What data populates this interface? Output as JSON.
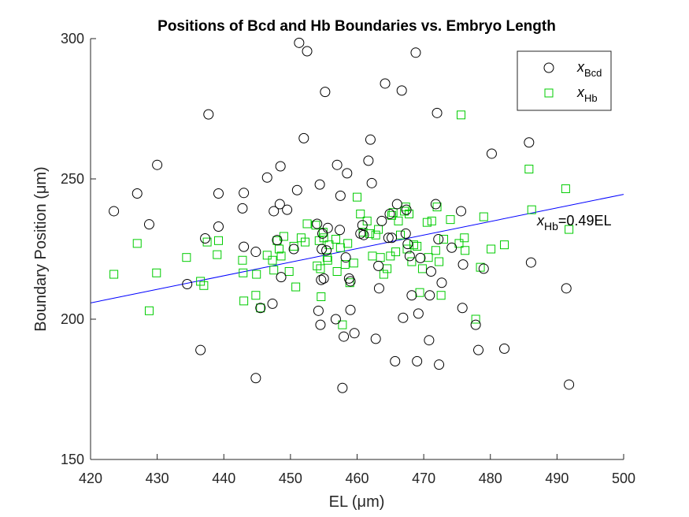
{
  "chart_data": {
    "type": "scatter",
    "title": "Positions of Bcd and Hb Boundaries vs. Embryo Length",
    "xlabel": "EL (μm)",
    "ylabel": "Boundary Position (μm)",
    "xlim": [
      420,
      500
    ],
    "ylim": [
      150,
      300
    ],
    "xticks": [
      "420",
      "430",
      "440",
      "450",
      "460",
      "470",
      "480",
      "490",
      "500"
    ],
    "yticks": [
      "150",
      "200",
      "250",
      "300"
    ],
    "legend_position": "top-right",
    "fit_annotation": {
      "main": "x",
      "sub": "Hb",
      "tail": "=0.49EL"
    },
    "fit_line": {
      "slope": 0.49,
      "x": [
        420,
        500
      ],
      "y": [
        205.8,
        244.5
      ]
    },
    "colors": {
      "bcd": "#000000",
      "hb": "#00cc00",
      "fit": "#0000ff"
    },
    "series": [
      {
        "name": "x_Bcd",
        "legend_main": "x",
        "legend_sub": "Bcd",
        "marker": "circle",
        "points": [
          [
            423.5,
            238.5
          ],
          [
            427,
            244.8
          ],
          [
            428.8,
            233.8
          ],
          [
            430,
            255
          ],
          [
            434.5,
            212.5
          ],
          [
            436.5,
            189
          ],
          [
            437.2,
            228.8
          ],
          [
            437.7,
            273
          ],
          [
            439.2,
            244.8
          ],
          [
            439.2,
            233
          ],
          [
            442.8,
            239.5
          ],
          [
            443,
            245
          ],
          [
            443,
            225.8
          ],
          [
            444.8,
            224
          ],
          [
            444.8,
            179
          ],
          [
            445.5,
            204
          ],
          [
            446.5,
            250.5
          ],
          [
            447.3,
            205.5
          ],
          [
            447.5,
            238.5
          ],
          [
            448,
            228.2
          ],
          [
            448.4,
            241
          ],
          [
            448.5,
            254.5
          ],
          [
            448.6,
            215
          ],
          [
            449.5,
            239
          ],
          [
            450.5,
            225
          ],
          [
            451,
            246
          ],
          [
            451.3,
            298.5
          ],
          [
            452,
            264.5
          ],
          [
            452.5,
            295.5
          ],
          [
            454,
            234
          ],
          [
            454.2,
            203
          ],
          [
            454.4,
            248
          ],
          [
            454.5,
            198
          ],
          [
            454.6,
            214
          ],
          [
            454.7,
            225
          ],
          [
            454.8,
            230.5
          ],
          [
            455,
            214.5
          ],
          [
            455.2,
            281
          ],
          [
            455.4,
            224.5
          ],
          [
            455.6,
            232.5
          ],
          [
            456.8,
            200
          ],
          [
            457,
            255
          ],
          [
            457.4,
            231.8
          ],
          [
            457.5,
            244
          ],
          [
            457.8,
            175.5
          ],
          [
            458,
            193.8
          ],
          [
            458.3,
            222
          ],
          [
            458.5,
            252
          ],
          [
            458.8,
            214.5
          ],
          [
            459,
            213.5
          ],
          [
            459,
            203.3
          ],
          [
            459.6,
            195
          ],
          [
            460.5,
            230.5
          ],
          [
            460.8,
            233.5
          ],
          [
            461,
            230
          ],
          [
            461.7,
            256.5
          ],
          [
            462,
            264
          ],
          [
            462.2,
            248.5
          ],
          [
            462.8,
            193
          ],
          [
            463.2,
            219
          ],
          [
            463.3,
            211
          ],
          [
            463.7,
            235
          ],
          [
            464.2,
            284
          ],
          [
            464.7,
            229
          ],
          [
            464.9,
            237.5
          ],
          [
            465.2,
            229
          ],
          [
            465.7,
            185
          ],
          [
            466,
            241
          ],
          [
            466.7,
            281.5
          ],
          [
            466.9,
            200.5
          ],
          [
            467.3,
            230.5
          ],
          [
            467.4,
            239
          ],
          [
            467.6,
            226.8
          ],
          [
            467.9,
            222.5
          ],
          [
            468.2,
            208.5
          ],
          [
            468.8,
            295
          ],
          [
            469,
            185
          ],
          [
            469.2,
            202
          ],
          [
            469.5,
            221.8
          ],
          [
            470.8,
            192.5
          ],
          [
            470.9,
            208.5
          ],
          [
            471.1,
            217
          ],
          [
            471.8,
            241
          ],
          [
            472,
            273.5
          ],
          [
            472.2,
            228.5
          ],
          [
            472.3,
            183.8
          ],
          [
            472.7,
            213
          ],
          [
            474.2,
            225.5
          ],
          [
            475.6,
            238.5
          ],
          [
            475.8,
            204
          ],
          [
            475.9,
            219.5
          ],
          [
            477.8,
            198
          ],
          [
            478.2,
            189
          ],
          [
            479,
            218
          ],
          [
            480.2,
            259
          ],
          [
            482.1,
            189.5
          ],
          [
            485.8,
            263
          ],
          [
            486.1,
            220.2
          ],
          [
            491.4,
            211
          ],
          [
            491.8,
            176.7
          ]
        ]
      },
      {
        "name": "x_Hb",
        "legend_main": "x",
        "legend_sub": "Hb",
        "marker": "square",
        "points": [
          [
            423.5,
            216
          ],
          [
            427,
            227
          ],
          [
            428.8,
            203
          ],
          [
            429.9,
            216.5
          ],
          [
            434.4,
            222
          ],
          [
            436.5,
            213.5
          ],
          [
            437,
            212
          ],
          [
            437.5,
            227.5
          ],
          [
            439,
            223
          ],
          [
            439.2,
            228
          ],
          [
            442.8,
            221
          ],
          [
            442.9,
            216.5
          ],
          [
            443,
            206.5
          ],
          [
            444.8,
            208.5
          ],
          [
            444.9,
            216
          ],
          [
            445.5,
            204
          ],
          [
            446.5,
            222.8
          ],
          [
            447.3,
            221
          ],
          [
            447.5,
            217.5
          ],
          [
            448,
            228
          ],
          [
            448.3,
            225
          ],
          [
            448.6,
            222.5
          ],
          [
            449,
            229.5
          ],
          [
            449.8,
            217
          ],
          [
            450.5,
            226
          ],
          [
            450.8,
            211.5
          ],
          [
            451.6,
            229
          ],
          [
            452.2,
            227.5
          ],
          [
            452.5,
            234
          ],
          [
            453.8,
            233.5
          ],
          [
            454,
            219
          ],
          [
            454.3,
            228
          ],
          [
            454.5,
            218
          ],
          [
            454.6,
            208
          ],
          [
            454.9,
            231
          ],
          [
            455,
            229
          ],
          [
            455.5,
            222
          ],
          [
            455.6,
            221
          ],
          [
            455.8,
            226.5
          ],
          [
            456.8,
            228.5
          ],
          [
            457,
            217
          ],
          [
            457.5,
            225.5
          ],
          [
            457.8,
            198
          ],
          [
            458.2,
            219.5
          ],
          [
            458.6,
            227
          ],
          [
            458.9,
            213
          ],
          [
            459.5,
            220
          ],
          [
            460,
            243.5
          ],
          [
            460.5,
            237.5
          ],
          [
            460.9,
            231
          ],
          [
            461.5,
            235
          ],
          [
            461.9,
            230.5
          ],
          [
            462.3,
            222.5
          ],
          [
            462.8,
            230
          ],
          [
            463.2,
            232
          ],
          [
            463.5,
            222
          ],
          [
            464,
            216
          ],
          [
            464.5,
            218
          ],
          [
            465,
            222.5
          ],
          [
            465.2,
            237
          ],
          [
            465.4,
            238
          ],
          [
            465.8,
            224
          ],
          [
            466.2,
            235
          ],
          [
            466.5,
            230
          ],
          [
            467.1,
            238.5
          ],
          [
            467.3,
            240
          ],
          [
            467.5,
            225
          ],
          [
            467.8,
            237.5
          ],
          [
            468.2,
            220.5
          ],
          [
            468.5,
            226.5
          ],
          [
            469,
            226
          ],
          [
            469.4,
            209.5
          ],
          [
            469.8,
            218
          ],
          [
            470.5,
            234.5
          ],
          [
            470.7,
            222
          ],
          [
            471.2,
            235
          ],
          [
            471.8,
            224.5
          ],
          [
            472,
            240
          ],
          [
            472.3,
            220.5
          ],
          [
            472.6,
            208.5
          ],
          [
            473,
            228.5
          ],
          [
            474,
            235.5
          ],
          [
            475.3,
            227
          ],
          [
            475.6,
            272.8
          ],
          [
            476.1,
            229
          ],
          [
            476.2,
            224.5
          ],
          [
            477.8,
            200
          ],
          [
            478.5,
            218.5
          ],
          [
            479,
            236.5
          ],
          [
            480.1,
            225
          ],
          [
            482.1,
            226.5
          ],
          [
            485.8,
            253.5
          ],
          [
            486.2,
            239
          ],
          [
            491.3,
            246.5
          ],
          [
            491.8,
            232
          ]
        ]
      }
    ]
  }
}
